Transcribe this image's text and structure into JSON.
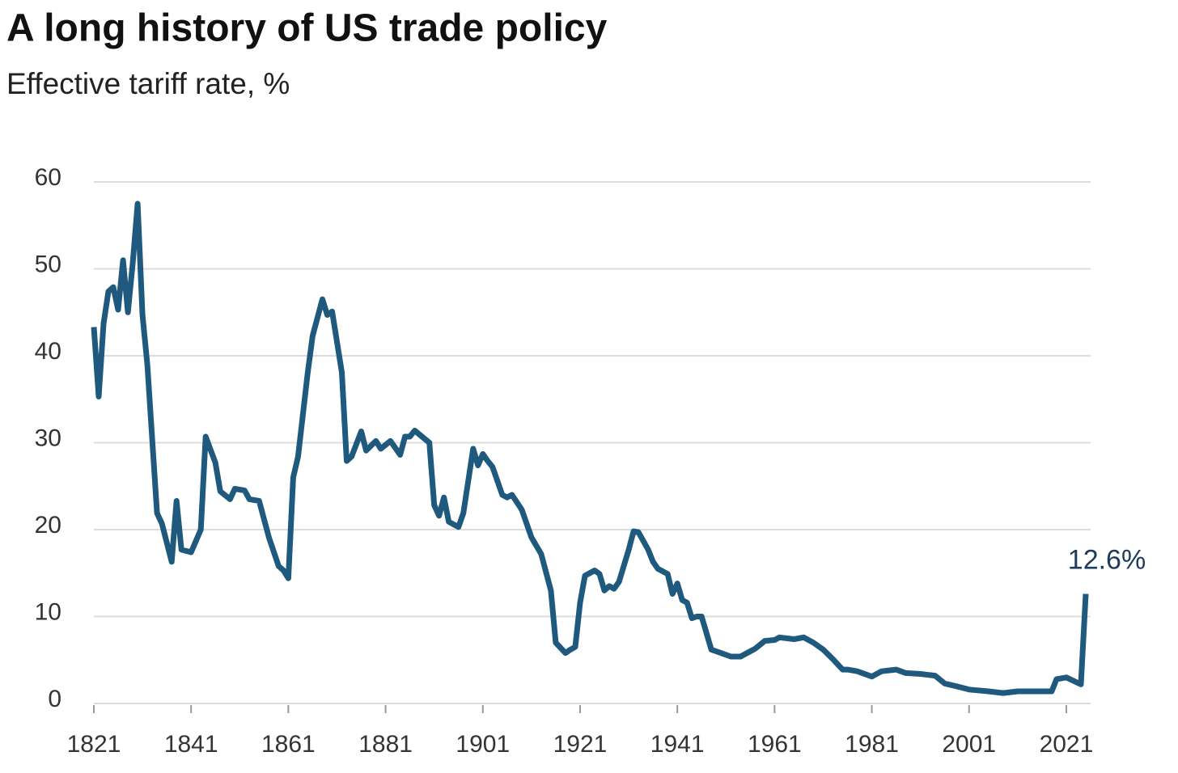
{
  "chart_data": {
    "type": "line",
    "title": "A long history of US trade policy",
    "subtitle": "Effective tariff rate, %",
    "x": [
      1821,
      1822,
      1823,
      1824,
      1825,
      1826,
      1827,
      1828,
      1829,
      1830,
      1831,
      1832,
      1834,
      1835,
      1837,
      1838,
      1839,
      1841,
      1843,
      1844,
      1846,
      1847,
      1849,
      1850,
      1852,
      1853,
      1855,
      1857,
      1859,
      1860,
      1861,
      1862,
      1863,
      1865,
      1866,
      1868,
      1869,
      1870,
      1872,
      1873,
      1874,
      1876,
      1877,
      1879,
      1880,
      1882,
      1884,
      1885,
      1886,
      1887,
      1890,
      1891,
      1892,
      1893,
      1894,
      1896,
      1897,
      1899,
      1900,
      1901,
      1902,
      1903,
      1905,
      1906,
      1907,
      1909,
      1910,
      1911,
      1913,
      1915,
      1916,
      1918,
      1919,
      1920,
      1921,
      1922,
      1924,
      1925,
      1926,
      1927,
      1928,
      1929,
      1931,
      1932,
      1933,
      1935,
      1936,
      1937,
      1939,
      1940,
      1941,
      1942,
      1943,
      1944,
      1945,
      1946,
      1948,
      1949,
      1951,
      1952,
      1954,
      1956,
      1957,
      1959,
      1961,
      1962,
      1965,
      1967,
      1969,
      1971,
      1973,
      1975,
      1976,
      1978,
      1981,
      1983,
      1986,
      1988,
      1991,
      1994,
      1996,
      1999,
      2001,
      2005,
      2008,
      2011,
      2015,
      2018,
      2019,
      2021,
      2024,
      2025
    ],
    "series": [
      {
        "name": "Effective tariff rate",
        "color": "#1f5a7e",
        "values": [
          43.3,
          35.3,
          43.7,
          47.4,
          47.9,
          45.3,
          51,
          45,
          50.7,
          57.5,
          44.7,
          39,
          21.9,
          20.7,
          16.3,
          23.3,
          17.7,
          17.4,
          20,
          30.7,
          27.7,
          24.4,
          23.5,
          24.7,
          24.5,
          23.5,
          23.3,
          19.1,
          15.8,
          15.3,
          14.4,
          26,
          28.4,
          38.1,
          42.3,
          46.5,
          44.7,
          45.1,
          38.1,
          27.9,
          28.4,
          31.3,
          29.1,
          30.2,
          29.3,
          30.2,
          28.6,
          30.7,
          30.7,
          31.4,
          30,
          22.8,
          21.6,
          23.7,
          20.9,
          20.3,
          21.9,
          29.3,
          27.4,
          28.7,
          27.9,
          27.2,
          24,
          23.7,
          24,
          22.3,
          20.7,
          19.1,
          17.2,
          13,
          7,
          5.8,
          6.2,
          6.5,
          11.6,
          14.7,
          15.3,
          14.9,
          13,
          13.5,
          13.2,
          14,
          17.7,
          19.8,
          19.7,
          17.7,
          16.3,
          15.5,
          14.9,
          12.6,
          13.8,
          11.9,
          11.6,
          9.8,
          10,
          10,
          6.2,
          6,
          5.6,
          5.4,
          5.4,
          6,
          6.3,
          7.2,
          7.3,
          7.6,
          7.4,
          7.6,
          7,
          6.2,
          5.1,
          3.9,
          3.9,
          3.7,
          3.1,
          3.7,
          3.9,
          3.5,
          3.4,
          3.2,
          2.3,
          1.9,
          1.6,
          1.4,
          1.2,
          1.4,
          1.4,
          1.4,
          2.8,
          3,
          2.2,
          12.6
        ]
      }
    ],
    "annotations": [
      {
        "x": 2025,
        "y": 12.6,
        "label": "12.6%"
      }
    ],
    "xlim": [
      1821,
      2026
    ],
    "xticks": [
      1821,
      1841,
      1861,
      1881,
      1901,
      1921,
      1941,
      1961,
      1981,
      2001,
      2021
    ],
    "ylim": [
      0,
      60
    ],
    "yticks": [
      0,
      10,
      20,
      30,
      40,
      50,
      60
    ],
    "grid": true
  }
}
